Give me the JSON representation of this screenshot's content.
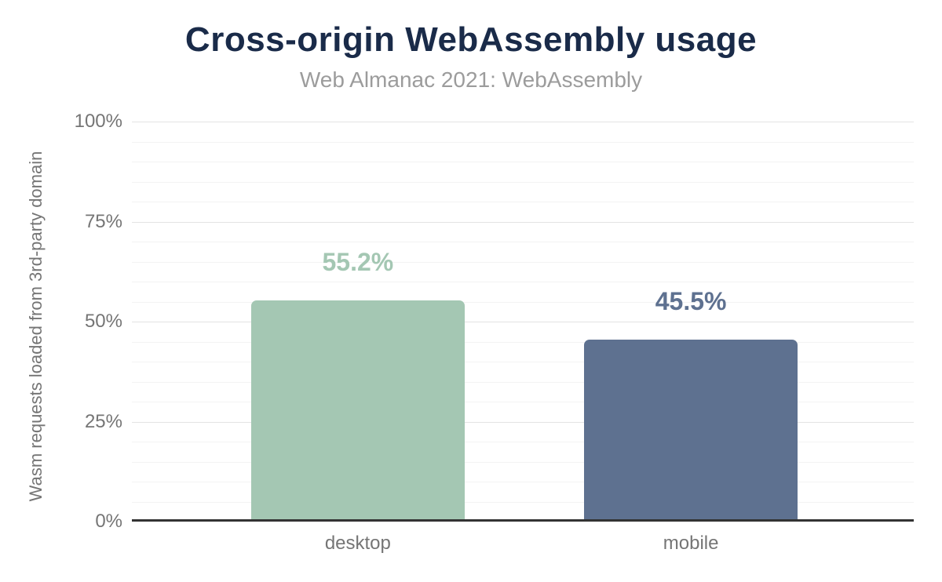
{
  "chart_data": {
    "type": "bar",
    "title": "Cross-origin WebAssembly usage",
    "subtitle": "Web Almanac 2021: WebAssembly",
    "categories": [
      "desktop",
      "mobile"
    ],
    "values": [
      55.2,
      45.5
    ],
    "data_labels": [
      "55.2%",
      "45.5%"
    ],
    "bar_colors": [
      "#a4c7b3",
      "#5e7190"
    ],
    "xlabel": "",
    "ylabel": "Wasm requests loaded from 3rd-party domain",
    "ylim": [
      0,
      100
    ],
    "yticks": [
      0,
      25,
      50,
      75,
      100
    ],
    "ytick_labels": [
      "0%",
      "25%",
      "50%",
      "75%",
      "100%"
    ],
    "minor_gridline_step_percent": 5,
    "grid": true,
    "legend": "none"
  },
  "colors": {
    "title_text": "#1a2b49",
    "subtitle_text": "#9c9c9c",
    "axis_text": "#757575",
    "axis_line": "#333333",
    "major_gridline": "#e3e3e3",
    "minor_gridline": "#f3f3f3",
    "background": "#ffffff"
  }
}
